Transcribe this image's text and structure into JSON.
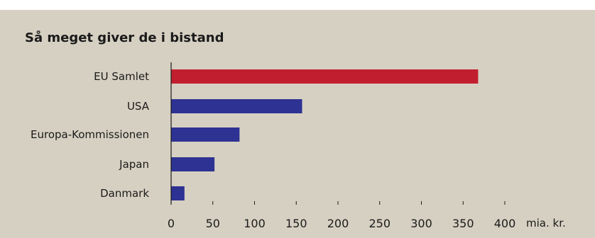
{
  "chart_data": {
    "type": "bar",
    "orientation": "horizontal",
    "title": "Så meget giver de i bistand",
    "categories": [
      "EU Samlet",
      "USA",
      "Europa-Kommissionen",
      "Japan",
      "Danmark"
    ],
    "values": [
      368,
      157,
      82,
      52,
      16
    ],
    "bar_colors": [
      "#c11f2f",
      "#2e3293",
      "#2e3293",
      "#2e3293",
      "#2e3293"
    ],
    "xticks": [
      "0",
      "50",
      "100",
      "150",
      "200",
      "250",
      "300",
      "350",
      "400"
    ],
    "xlim": [
      0,
      400
    ],
    "unit_label": "mia. kr.",
    "grid": false,
    "legend": "none"
  },
  "colors": {
    "background": "#d6d0c2",
    "axis": "#1a1a1a"
  }
}
